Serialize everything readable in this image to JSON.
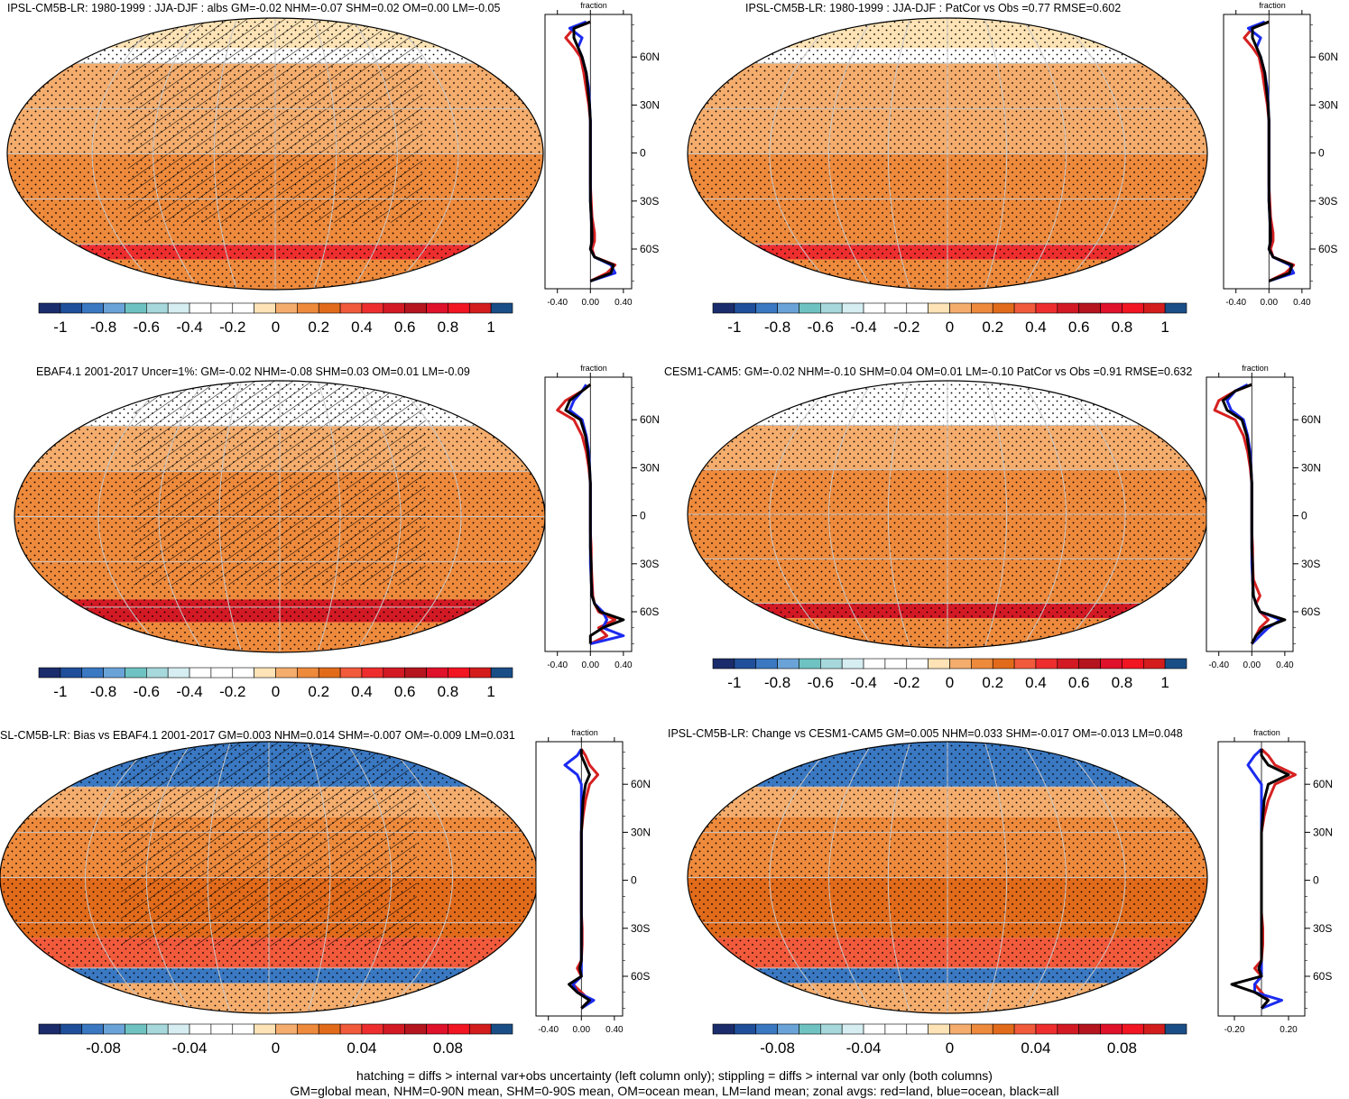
{
  "caption": {
    "line1": "hatching = diffs > internal var+obs uncertainty (left column only); stippling = diffs > internal var only (both columns)",
    "line2": "GM=global mean, NHM=0-90N mean, SHM=0-90S mean, OM=ocean mean, LM=land mean; zonal avgs: red=land, blue=ocean, black=all"
  },
  "colors": {
    "palette": [
      "#1a2c6b",
      "#1f4f9a",
      "#3a78c2",
      "#6aa3d8",
      "#6ec3c2",
      "#a6d8dc",
      "#d6eef2",
      "#ffffff",
      "#ffffff",
      "#ffffff",
      "#fde3b5",
      "#f4ad6d",
      "#ee8a3c",
      "#e16b1b",
      "#f25a3c",
      "#ee2e2e",
      "#d31a24",
      "#b5151e",
      "#e0112a",
      "#f21522",
      "#d31d1d",
      "#1a4e86"
    ],
    "land": "#d62020",
    "ocean": "#1b2bf0",
    "all": "#000000",
    "grid": "#c8c8c8"
  },
  "chart_data": [
    {
      "id": "p1",
      "type": "heatmap",
      "title": "IPSL-CM5B-LR: 1980-1999 : JJA-DJF : albs GM=-0.02 NHM=-0.07 SHM=0.02 OM=0.00 LM=-0.05",
      "hatched": true,
      "bands": [
        {
          "lat": [
            70,
            90
          ],
          "value": -0.1
        },
        {
          "lat": [
            60,
            70
          ],
          "value": -0.25
        },
        {
          "lat": [
            0,
            60
          ],
          "value": 0.02
        },
        {
          "lat": [
            -60,
            0
          ],
          "value": 0.1
        },
        {
          "lat": [
            -70,
            -60
          ],
          "value": 0.45
        },
        {
          "lat": [
            -90,
            -70
          ],
          "value": 0.1
        }
      ],
      "colorbar": {
        "ticks": [
          "-1",
          "-0.8",
          "-0.6",
          "-0.4",
          "-0.2",
          "0",
          "0.2",
          "0.4",
          "0.6",
          "0.8",
          "1"
        ]
      },
      "zonal": {
        "xlabel": "fraction",
        "xlim": [
          -0.55,
          0.5
        ],
        "xticks": [
          "-0.40",
          "0.00",
          "0.40"
        ],
        "yticks": [
          "60N",
          "30N",
          "0",
          "30S",
          "60S"
        ],
        "lat": [
          82,
          78,
          72,
          66,
          60,
          50,
          40,
          30,
          20,
          10,
          0,
          -10,
          -20,
          -30,
          -40,
          -50,
          -55,
          -60,
          -65,
          -70,
          -75,
          -80
        ],
        "land": [
          0.0,
          -0.2,
          -0.3,
          -0.2,
          -0.12,
          -0.08,
          -0.05,
          -0.02,
          0.0,
          0.0,
          0.0,
          0.0,
          0.0,
          0.01,
          0.02,
          0.05,
          0.05,
          0.02,
          0.05,
          0.3,
          0.2,
          0.0
        ],
        "ocean": [
          -0.05,
          -0.25,
          -0.1,
          -0.15,
          -0.1,
          -0.05,
          -0.02,
          -0.01,
          0.0,
          0.0,
          0.0,
          0.0,
          0.0,
          0.0,
          0.01,
          0.02,
          0.02,
          0.0,
          0.05,
          0.25,
          0.3,
          0.0
        ],
        "all": [
          0.0,
          -0.2,
          -0.2,
          -0.15,
          -0.1,
          -0.05,
          -0.03,
          -0.01,
          0.0,
          0.0,
          0.0,
          0.0,
          0.0,
          0.0,
          0.01,
          0.02,
          0.02,
          0.0,
          0.05,
          0.28,
          0.25,
          0.0
        ]
      }
    },
    {
      "id": "p2",
      "type": "heatmap",
      "title": "IPSL-CM5B-LR: 1980-1999 : JJA-DJF : PatCor vs Obs =0.77 RMSE=0.602",
      "hatched": false,
      "bands": [
        {
          "lat": [
            70,
            90
          ],
          "value": -0.1
        },
        {
          "lat": [
            60,
            70
          ],
          "value": -0.25
        },
        {
          "lat": [
            0,
            60
          ],
          "value": 0.02
        },
        {
          "lat": [
            -60,
            0
          ],
          "value": 0.1
        },
        {
          "lat": [
            -70,
            -60
          ],
          "value": 0.45
        },
        {
          "lat": [
            -90,
            -70
          ],
          "value": 0.1
        }
      ],
      "colorbar": {
        "ticks": [
          "-1",
          "-0.8",
          "-0.6",
          "-0.4",
          "-0.2",
          "0",
          "0.2",
          "0.4",
          "0.6",
          "0.8",
          "1"
        ]
      },
      "zonal": {
        "xlabel": "fraction",
        "xlim": [
          -0.55,
          0.5
        ],
        "xticks": [
          "-0.40",
          "0.00",
          "0.40"
        ],
        "yticks": [
          "60N",
          "30N",
          "0",
          "30S",
          "60S"
        ],
        "lat": [
          82,
          78,
          72,
          66,
          60,
          50,
          40,
          30,
          20,
          10,
          0,
          -10,
          -20,
          -30,
          -40,
          -50,
          -55,
          -60,
          -65,
          -70,
          -75,
          -80
        ],
        "land": [
          0.0,
          -0.2,
          -0.3,
          -0.2,
          -0.12,
          -0.08,
          -0.05,
          -0.02,
          0.0,
          0.0,
          0.0,
          0.0,
          0.0,
          0.01,
          0.02,
          0.05,
          0.05,
          0.02,
          0.05,
          0.3,
          0.2,
          0.0
        ],
        "ocean": [
          -0.05,
          -0.25,
          -0.1,
          -0.15,
          -0.1,
          -0.05,
          -0.02,
          -0.01,
          0.0,
          0.0,
          0.0,
          0.0,
          0.0,
          0.0,
          0.01,
          0.02,
          0.02,
          0.0,
          0.05,
          0.25,
          0.3,
          0.0
        ],
        "all": [
          0.0,
          -0.2,
          -0.2,
          -0.15,
          -0.1,
          -0.05,
          -0.03,
          -0.01,
          0.0,
          0.0,
          0.0,
          0.0,
          0.0,
          0.0,
          0.01,
          0.02,
          0.02,
          0.0,
          0.05,
          0.28,
          0.25,
          0.0
        ]
      }
    },
    {
      "id": "p3",
      "type": "heatmap",
      "title": "EBAF4.1 2001-2017 Uncer=1%: GM=-0.02 NHM=-0.08 SHM=0.03 OM=0.01 LM=-0.09",
      "hatched": true,
      "bands": [
        {
          "lat": [
            60,
            90
          ],
          "value": -0.3
        },
        {
          "lat": [
            30,
            60
          ],
          "value": 0.02
        },
        {
          "lat": [
            0,
            30
          ],
          "value": 0.1
        },
        {
          "lat": [
            -55,
            0
          ],
          "value": 0.15
        },
        {
          "lat": [
            -70,
            -55
          ],
          "value": 0.5
        },
        {
          "lat": [
            -90,
            -70
          ],
          "value": 0.15
        }
      ],
      "colorbar": {
        "ticks": [
          "-1",
          "-0.8",
          "-0.6",
          "-0.4",
          "-0.2",
          "0",
          "0.2",
          "0.4",
          "0.6",
          "0.8",
          "1"
        ]
      },
      "zonal": {
        "xlabel": "fraction",
        "xlim": [
          -0.55,
          0.5
        ],
        "xticks": [
          "-0.40",
          "0.00",
          "0.40"
        ],
        "yticks": [
          "60N",
          "30N",
          "0",
          "30S",
          "60S"
        ],
        "lat": [
          82,
          78,
          72,
          66,
          60,
          50,
          40,
          30,
          20,
          10,
          0,
          -10,
          -20,
          -30,
          -40,
          -50,
          -55,
          -60,
          -65,
          -70,
          -75,
          -80
        ],
        "land": [
          0.0,
          -0.1,
          -0.3,
          -0.4,
          -0.2,
          -0.1,
          -0.05,
          -0.02,
          0.0,
          0.0,
          0.0,
          0.0,
          0.01,
          0.01,
          0.02,
          0.03,
          0.05,
          0.1,
          0.3,
          0.1,
          0.2,
          0.0
        ],
        "ocean": [
          -0.05,
          -0.1,
          -0.2,
          -0.25,
          -0.1,
          -0.05,
          -0.02,
          -0.01,
          0.0,
          0.0,
          0.0,
          0.0,
          0.0,
          0.0,
          0.01,
          0.02,
          0.05,
          0.15,
          0.2,
          0.15,
          0.4,
          0.0
        ],
        "all": [
          0.0,
          -0.1,
          -0.25,
          -0.3,
          -0.12,
          -0.06,
          -0.03,
          -0.01,
          0.0,
          0.0,
          0.0,
          0.0,
          0.0,
          0.01,
          0.01,
          0.02,
          0.05,
          0.12,
          0.4,
          0.15,
          0.0,
          0.0
        ]
      }
    },
    {
      "id": "p4",
      "type": "heatmap",
      "title": "CESM1-CAM5: GM=-0.02 NHM=-0.10 SHM=0.04 OM=0.01 LM=-0.10 PatCor vs Obs =0.91 RMSE=0.632",
      "hatched": false,
      "bands": [
        {
          "lat": [
            60,
            90
          ],
          "value": -0.3
        },
        {
          "lat": [
            30,
            60
          ],
          "value": 0.02
        },
        {
          "lat": [
            0,
            30
          ],
          "value": 0.1
        },
        {
          "lat": [
            -60,
            0
          ],
          "value": 0.15
        },
        {
          "lat": [
            -70,
            -60
          ],
          "value": 0.5
        },
        {
          "lat": [
            -90,
            -70
          ],
          "value": 0.15
        }
      ],
      "colorbar": {
        "ticks": [
          "-1",
          "-0.8",
          "-0.6",
          "-0.4",
          "-0.2",
          "0",
          "0.2",
          "0.4",
          "0.6",
          "0.8",
          "1"
        ]
      },
      "zonal": {
        "xlabel": "fraction",
        "xlim": [
          -0.55,
          0.5
        ],
        "xticks": [
          "-0.40",
          "0.00",
          "0.40"
        ],
        "yticks": [
          "60N",
          "30N",
          "0",
          "30S",
          "60S"
        ],
        "lat": [
          82,
          78,
          72,
          66,
          60,
          50,
          40,
          30,
          20,
          10,
          0,
          -10,
          -20,
          -30,
          -40,
          -50,
          -55,
          -60,
          -65,
          -70,
          -75,
          -80
        ],
        "land": [
          0.0,
          -0.2,
          -0.4,
          -0.45,
          -0.2,
          -0.1,
          -0.05,
          -0.02,
          0.0,
          0.0,
          0.0,
          0.0,
          0.01,
          0.01,
          0.02,
          0.1,
          0.05,
          0.1,
          0.2,
          0.1,
          0.05,
          0.0
        ],
        "ocean": [
          -0.05,
          -0.2,
          -0.3,
          -0.25,
          -0.1,
          -0.05,
          -0.02,
          -0.01,
          0.0,
          0.0,
          0.0,
          0.0,
          0.0,
          0.0,
          0.01,
          0.02,
          0.05,
          0.1,
          0.35,
          0.2,
          0.1,
          0.0
        ],
        "all": [
          0.0,
          -0.2,
          -0.35,
          -0.3,
          -0.12,
          -0.06,
          -0.03,
          -0.01,
          0.0,
          0.0,
          0.0,
          0.0,
          0.0,
          0.01,
          0.01,
          0.02,
          0.05,
          0.1,
          0.4,
          0.15,
          0.05,
          0.0
        ]
      }
    },
    {
      "id": "p5",
      "type": "heatmap",
      "title": "SL-CM5B-LR: Bias vs EBAF4.1 2001-2017 GM=0.003 NHM=0.014 SHM=-0.007 OM=-0.009 LM=0.031",
      "hatched": true,
      "bands": [
        {
          "lat": [
            60,
            90
          ],
          "value": -0.09
        },
        {
          "lat": [
            40,
            60
          ],
          "value": 0.005
        },
        {
          "lat": [
            0,
            40
          ],
          "value": 0.01
        },
        {
          "lat": [
            -40,
            0
          ],
          "value": 0.02
        },
        {
          "lat": [
            -60,
            -40
          ],
          "value": 0.03
        },
        {
          "lat": [
            -70,
            -60
          ],
          "value": -0.09
        },
        {
          "lat": [
            -90,
            -70
          ],
          "value": 0.0
        }
      ],
      "colorbar": {
        "ticks": [
          "-0.08",
          "-0.04",
          "0",
          "0.04",
          "0.08"
        ]
      },
      "zonal": {
        "xlabel": "fraction",
        "xlim": [
          -0.55,
          0.5
        ],
        "xticks": [
          "-0.40",
          "0.00",
          "0.40"
        ],
        "yticks": [
          "60N",
          "30N",
          "0",
          "30S",
          "60S"
        ],
        "lat": [
          82,
          78,
          72,
          66,
          60,
          50,
          40,
          30,
          20,
          10,
          0,
          -10,
          -20,
          -30,
          -40,
          -50,
          -55,
          -60,
          -65,
          -70,
          -75,
          -80
        ],
        "land": [
          0.0,
          0.05,
          0.1,
          0.2,
          0.1,
          0.05,
          0.02,
          0.0,
          0.0,
          0.0,
          0.0,
          0.0,
          0.0,
          0.01,
          0.01,
          0.0,
          -0.05,
          0.0,
          -0.1,
          0.0,
          0.1,
          0.0
        ],
        "ocean": [
          0.0,
          -0.05,
          -0.2,
          -0.05,
          0.0,
          0.0,
          0.0,
          0.0,
          0.0,
          0.0,
          0.0,
          0.0,
          0.0,
          0.0,
          0.0,
          0.0,
          0.0,
          0.0,
          -0.1,
          -0.05,
          0.15,
          0.0
        ],
        "all": [
          0.0,
          0.0,
          0.05,
          0.1,
          0.05,
          0.02,
          0.01,
          0.0,
          0.0,
          0.0,
          0.0,
          0.0,
          0.0,
          0.0,
          0.0,
          0.0,
          -0.02,
          0.0,
          -0.15,
          -0.05,
          0.1,
          0.0
        ]
      }
    },
    {
      "id": "p6",
      "type": "heatmap",
      "title": "IPSL-CM5B-LR: Change vs CESM1-CAM5 GM=0.005 NHM=0.033 SHM=-0.017 OM=-0.013 LM=0.048",
      "hatched": false,
      "bands": [
        {
          "lat": [
            60,
            90
          ],
          "value": -0.09
        },
        {
          "lat": [
            40,
            60
          ],
          "value": 0.005
        },
        {
          "lat": [
            0,
            40
          ],
          "value": 0.01
        },
        {
          "lat": [
            -40,
            0
          ],
          "value": 0.02
        },
        {
          "lat": [
            -60,
            -40
          ],
          "value": 0.03
        },
        {
          "lat": [
            -70,
            -60
          ],
          "value": -0.09
        },
        {
          "lat": [
            -90,
            -70
          ],
          "value": 0.0
        }
      ],
      "colorbar": {
        "ticks": [
          "-0.08",
          "-0.04",
          "0",
          "0.04",
          "0.08"
        ]
      },
      "zonal": {
        "xlabel": "fraction",
        "xlim": [
          -0.32,
          0.32
        ],
        "xticks": [
          "-0.20",
          "0.20"
        ],
        "yticks": [
          "60N",
          "30N",
          "0",
          "30S",
          "60S"
        ],
        "lat": [
          82,
          78,
          72,
          66,
          60,
          50,
          40,
          30,
          20,
          10,
          0,
          -10,
          -20,
          -30,
          -40,
          -50,
          -55,
          -60,
          -65,
          -70,
          -75,
          -80
        ],
        "land": [
          0.0,
          0.05,
          0.1,
          0.25,
          0.1,
          0.05,
          0.02,
          0.0,
          0.0,
          0.0,
          0.0,
          0.0,
          0.0,
          0.01,
          0.01,
          0.0,
          -0.05,
          0.0,
          -0.05,
          0.0,
          0.05,
          0.0
        ],
        "ocean": [
          0.0,
          -0.05,
          -0.1,
          -0.05,
          0.0,
          0.0,
          0.0,
          0.0,
          0.0,
          0.0,
          0.0,
          0.0,
          0.0,
          0.0,
          0.0,
          0.0,
          0.0,
          0.0,
          -0.05,
          -0.05,
          0.15,
          0.0
        ],
        "all": [
          0.0,
          0.0,
          0.05,
          0.2,
          0.05,
          0.02,
          0.01,
          0.0,
          0.0,
          0.0,
          0.0,
          0.0,
          0.0,
          0.0,
          0.0,
          0.0,
          -0.02,
          0.0,
          -0.22,
          -0.05,
          0.05,
          0.0
        ]
      }
    }
  ]
}
